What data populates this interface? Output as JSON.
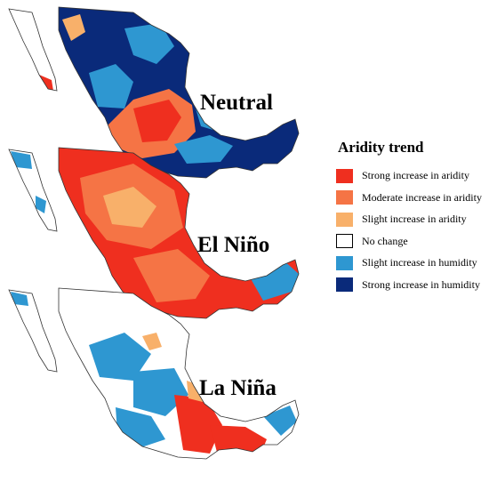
{
  "panels": [
    {
      "label": "Neutral"
    },
    {
      "label": "El Niño"
    },
    {
      "label": "La Niña"
    }
  ],
  "legend": {
    "title": "Aridity trend",
    "items": [
      {
        "label": "Strong increase in aridity",
        "color": "#ef2f1f"
      },
      {
        "label": "Moderate increase in aridity",
        "color": "#f57445"
      },
      {
        "label": "Slight increase in aridity",
        "color": "#f8b06a"
      },
      {
        "label": "No change",
        "color": "#ffffff"
      },
      {
        "label": "Slight increase in humidity",
        "color": "#2e97d1"
      },
      {
        "label": "Strong increase in humidity",
        "color": "#0a2a7a"
      }
    ]
  }
}
